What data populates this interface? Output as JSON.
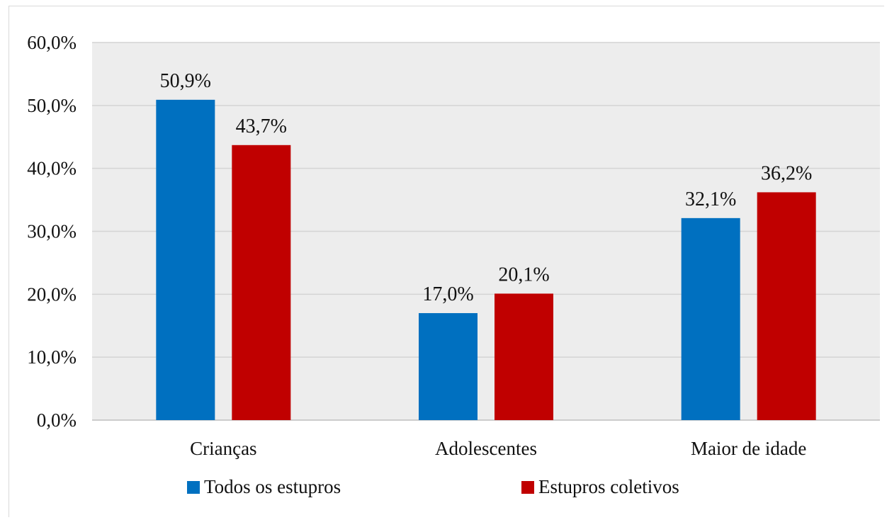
{
  "chart_data": {
    "type": "bar",
    "categories": [
      "Crianças",
      "Adolescentes",
      "Maior de idade"
    ],
    "series": [
      {
        "name": "Todos os estupros",
        "values": [
          50.9,
          17.0,
          32.1
        ],
        "labels": [
          "50,9%",
          "17,0%",
          "32,1%"
        ],
        "color": "#0070c0"
      },
      {
        "name": "Estupros coletivos",
        "values": [
          43.7,
          20.1,
          36.2
        ],
        "labels": [
          "43,7%",
          "20,1%",
          "36,2%"
        ],
        "color": "#c00000"
      }
    ],
    "yticks": [
      "0,0%",
      "10,0%",
      "20,0%",
      "30,0%",
      "40,0%",
      "50,0%",
      "60,0%"
    ],
    "ylim": [
      0,
      60
    ],
    "grid": true,
    "plot_background": "#ededed",
    "legend_position": "bottom",
    "title": "",
    "xlabel": "",
    "ylabel": ""
  }
}
